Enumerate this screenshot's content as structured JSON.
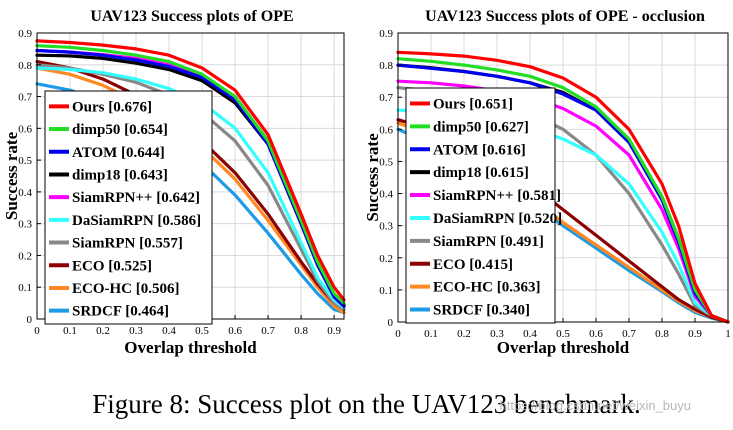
{
  "caption": "Figure 8: Success plot on the UAV123 benchmark.",
  "watermark": "https://blog.csdn.net/weixin_buyu",
  "chart_data": [
    {
      "type": "line",
      "title": "UAV123 Success plots of OPE",
      "xlabel": "Overlap threshold",
      "ylabel": "Success rate",
      "xlim": [
        0,
        0.93
      ],
      "ylim": [
        0,
        0.9
      ],
      "xticks": [
        "0",
        "0.1",
        "0.2",
        "0.3",
        "0.4",
        "0.5",
        "0.6",
        "0.7",
        "0.8",
        "0.9"
      ],
      "yticks": [
        "0",
        "0.1",
        "0.2",
        "0.3",
        "0.4",
        "0.5",
        "0.6",
        "0.7",
        "0.8",
        "0.9"
      ],
      "grid": true,
      "legend_position": "left",
      "x": [
        0,
        0.1,
        0.2,
        0.3,
        0.4,
        0.5,
        0.6,
        0.7,
        0.8,
        0.85,
        0.9,
        0.93
      ],
      "series": [
        {
          "name": "Ours",
          "score": "0.676",
          "color": "#ff0000",
          "values": [
            0.875,
            0.87,
            0.862,
            0.85,
            0.83,
            0.79,
            0.72,
            0.58,
            0.33,
            0.2,
            0.1,
            0.06
          ]
        },
        {
          "name": "dimp50",
          "score": "0.654",
          "color": "#22dd22",
          "values": [
            0.86,
            0.855,
            0.845,
            0.83,
            0.81,
            0.77,
            0.7,
            0.56,
            0.31,
            0.18,
            0.08,
            0.05
          ]
        },
        {
          "name": "ATOM",
          "score": "0.644",
          "color": "#0000ee",
          "values": [
            0.845,
            0.84,
            0.83,
            0.815,
            0.795,
            0.76,
            0.69,
            0.55,
            0.3,
            0.17,
            0.07,
            0.04
          ]
        },
        {
          "name": "dimp18",
          "score": "0.643",
          "color": "#000000",
          "values": [
            0.83,
            0.828,
            0.82,
            0.805,
            0.785,
            0.75,
            0.68,
            0.55,
            0.3,
            0.17,
            0.075,
            0.045
          ]
        },
        {
          "name": "SiamRPN++",
          "score": "0.642",
          "color": "#ff00ff",
          "values": [
            0.845,
            0.84,
            0.832,
            0.82,
            0.8,
            0.765,
            0.7,
            0.56,
            0.31,
            0.17,
            0.07,
            0.04
          ]
        },
        {
          "name": "DaSiamRPN",
          "score": "0.586",
          "color": "#33ffff",
          "values": [
            0.79,
            0.785,
            0.775,
            0.755,
            0.725,
            0.68,
            0.6,
            0.46,
            0.24,
            0.13,
            0.06,
            0.035
          ]
        },
        {
          "name": "SiamRPN",
          "score": "0.557",
          "color": "#888888",
          "values": [
            0.8,
            0.79,
            0.77,
            0.745,
            0.705,
            0.65,
            0.56,
            0.42,
            0.22,
            0.12,
            0.05,
            0.03
          ]
        },
        {
          "name": "ECO",
          "score": "0.525",
          "color": "#8b0000",
          "values": [
            0.81,
            0.79,
            0.755,
            0.705,
            0.64,
            0.56,
            0.46,
            0.33,
            0.18,
            0.11,
            0.05,
            0.03
          ]
        },
        {
          "name": "ECO-HC",
          "score": "0.506",
          "color": "#ff8822",
          "values": [
            0.79,
            0.77,
            0.735,
            0.685,
            0.62,
            0.54,
            0.44,
            0.31,
            0.17,
            0.1,
            0.04,
            0.02
          ]
        },
        {
          "name": "SRDCF",
          "score": "0.464",
          "color": "#1e9be6",
          "values": [
            0.74,
            0.72,
            0.685,
            0.635,
            0.57,
            0.49,
            0.39,
            0.27,
            0.14,
            0.08,
            0.03,
            0.02
          ]
        }
      ]
    },
    {
      "type": "line",
      "title": "UAV123 Success plots of OPE - occlusion",
      "xlabel": "Overlap threshold",
      "ylabel": "Success rate",
      "xlim": [
        0,
        1
      ],
      "ylim": [
        0,
        0.9
      ],
      "xticks": [
        "0",
        "0.1",
        "0.2",
        "0.3",
        "0.4",
        "0.5",
        "0.6",
        "0.7",
        "0.8",
        "0.9",
        "1"
      ],
      "yticks": [
        "0",
        "0.1",
        "0.2",
        "0.3",
        "0.4",
        "0.5",
        "0.6",
        "0.7",
        "0.8",
        "0.9"
      ],
      "grid": true,
      "legend_position": "left",
      "x": [
        0,
        0.1,
        0.2,
        0.3,
        0.4,
        0.5,
        0.6,
        0.7,
        0.8,
        0.85,
        0.9,
        0.95,
        1.0
      ],
      "series": [
        {
          "name": "Ours",
          "score": "0.651",
          "color": "#ff0000",
          "values": [
            0.84,
            0.835,
            0.828,
            0.815,
            0.795,
            0.76,
            0.7,
            0.6,
            0.43,
            0.3,
            0.12,
            0.02,
            0.0
          ]
        },
        {
          "name": "dimp50",
          "score": "0.627",
          "color": "#22dd22",
          "values": [
            0.82,
            0.812,
            0.8,
            0.785,
            0.765,
            0.73,
            0.67,
            0.57,
            0.39,
            0.26,
            0.1,
            0.02,
            0.0
          ]
        },
        {
          "name": "ATOM",
          "score": "0.616",
          "color": "#0000ee",
          "values": [
            0.8,
            0.79,
            0.78,
            0.765,
            0.745,
            0.71,
            0.66,
            0.56,
            0.38,
            0.25,
            0.09,
            0.02,
            0.0
          ]
        },
        {
          "name": "dimp18",
          "score": "0.615",
          "color": "#000000",
          "values": [
            0.8,
            0.792,
            0.78,
            0.765,
            0.745,
            0.715,
            0.66,
            0.56,
            0.39,
            0.26,
            0.1,
            0.02,
            0.0
          ]
        },
        {
          "name": "SiamRPN++",
          "score": "0.581",
          "color": "#ff00ff",
          "values": [
            0.75,
            0.745,
            0.735,
            0.72,
            0.7,
            0.665,
            0.61,
            0.52,
            0.35,
            0.23,
            0.08,
            0.02,
            0.0
          ]
        },
        {
          "name": "DaSiamRPN",
          "score": "0.520",
          "color": "#33ffff",
          "values": [
            0.66,
            0.655,
            0.645,
            0.63,
            0.605,
            0.57,
            0.52,
            0.43,
            0.28,
            0.18,
            0.06,
            0.02,
            0.0
          ]
        },
        {
          "name": "SiamRPN",
          "score": "0.491",
          "color": "#888888",
          "values": [
            0.73,
            0.72,
            0.705,
            0.68,
            0.65,
            0.6,
            0.52,
            0.4,
            0.24,
            0.15,
            0.05,
            0.02,
            0.0
          ]
        },
        {
          "name": "ECO",
          "score": "0.415",
          "color": "#8b0000",
          "values": [
            0.63,
            0.6,
            0.56,
            0.5,
            0.43,
            0.35,
            0.27,
            0.19,
            0.11,
            0.07,
            0.04,
            0.015,
            0.0
          ]
        },
        {
          "name": "ECO-HC",
          "score": "0.363",
          "color": "#ff8822",
          "values": [
            0.62,
            0.58,
            0.525,
            0.46,
            0.39,
            0.31,
            0.24,
            0.17,
            0.1,
            0.065,
            0.035,
            0.015,
            0.0
          ]
        },
        {
          "name": "SRDCF",
          "score": "0.340",
          "color": "#1e9be6",
          "values": [
            0.6,
            0.555,
            0.5,
            0.44,
            0.37,
            0.3,
            0.23,
            0.16,
            0.095,
            0.06,
            0.03,
            0.012,
            0.0
          ]
        }
      ]
    }
  ]
}
